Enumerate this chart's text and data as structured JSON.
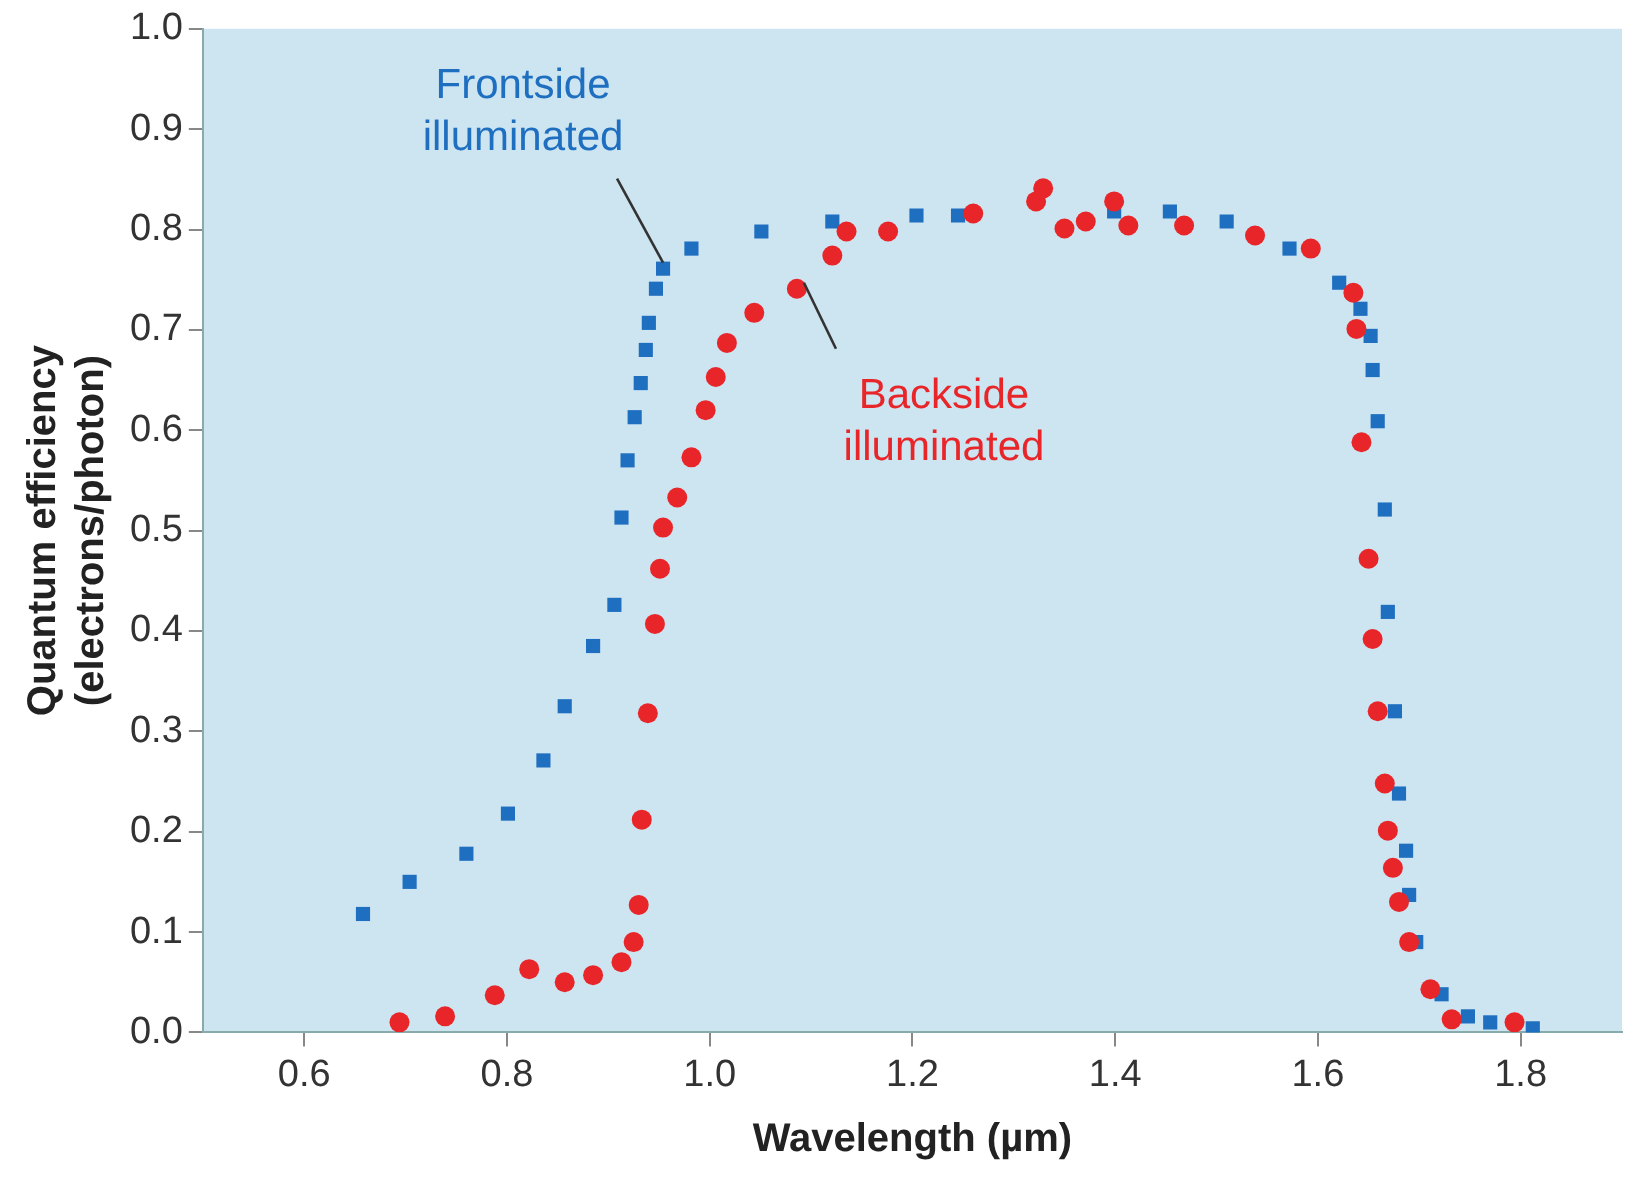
{
  "chart_data": {
    "type": "scatter",
    "xlabel": "Wavelength (µm)",
    "ylabel": "Quantum efficiency\n(electrons/photon)",
    "xlim": [
      0.5,
      1.9
    ],
    "xticks": [
      {
        "value": 0.6,
        "label": "0.6"
      },
      {
        "value": 0.8,
        "label": "0.8"
      },
      {
        "value": 1.0,
        "label": "1.0"
      },
      {
        "value": 1.2,
        "label": "1.2"
      },
      {
        "value": 1.4,
        "label": "1.4"
      },
      {
        "value": 1.6,
        "label": "1.6"
      },
      {
        "value": 1.8,
        "label": "1.8"
      }
    ],
    "ylim": [
      0,
      1
    ],
    "yticks": [
      {
        "value": 0,
        "label": "0.0"
      },
      {
        "value": 0.1,
        "label": "0.1"
      },
      {
        "value": 0.2,
        "label": "0.2"
      },
      {
        "value": 0.3,
        "label": "0.3"
      },
      {
        "value": 0.4,
        "label": "0.4"
      },
      {
        "value": 0.5,
        "label": "0.5"
      },
      {
        "value": 0.6,
        "label": "0.6"
      },
      {
        "value": 0.7,
        "label": "0.7"
      },
      {
        "value": 0.8,
        "label": "0.8"
      },
      {
        "value": 0.9,
        "label": "0.9"
      },
      {
        "value": 1,
        "label": "1.0"
      }
    ],
    "grid": false,
    "legend": false,
    "annotations": [
      {
        "text": "Frontside illuminated",
        "x": 0.954,
        "y": 0.767
      },
      {
        "text": "Backside illuminated",
        "x": 1.093,
        "y": 0.747
      }
    ],
    "series": [
      {
        "color": "#1f6fc0",
        "marker": "square",
        "x": [
          0.658,
          0.704,
          0.76,
          0.801,
          0.836,
          0.857,
          0.885,
          0.906,
          0.913,
          0.919,
          0.926,
          0.932,
          0.937,
          0.94,
          0.947,
          0.954,
          0.982,
          1.051,
          1.121,
          1.204,
          1.245,
          1.399,
          1.454,
          1.51,
          1.572,
          1.621,
          1.642,
          1.652,
          1.654,
          1.659,
          1.666,
          1.669,
          1.676,
          1.68,
          1.687,
          1.69,
          1.697,
          1.722,
          1.748,
          1.77,
          1.812
        ],
        "values": [
          0.118,
          0.15,
          0.178,
          0.218,
          0.271,
          0.325,
          0.385,
          0.426,
          0.513,
          0.57,
          0.613,
          0.647,
          0.68,
          0.707,
          0.741,
          0.761,
          0.781,
          0.798,
          0.808,
          0.814,
          0.814,
          0.818,
          0.818,
          0.808,
          0.781,
          0.747,
          0.721,
          0.694,
          0.66,
          0.609,
          0.521,
          0.419,
          0.32,
          0.238,
          0.181,
          0.137,
          0.09,
          0.038,
          0.016,
          0.01,
          0.004
        ]
      },
      {
        "color": "#e8262a",
        "marker": "circle",
        "x": [
          0.694,
          0.739,
          0.788,
          0.822,
          0.857,
          0.885,
          0.913,
          0.925,
          0.93,
          0.933,
          0.939,
          0.946,
          0.951,
          0.954,
          0.968,
          0.982,
          0.996,
          1.006,
          1.017,
          1.044,
          1.086,
          1.121,
          1.135,
          1.176,
          1.26,
          1.322,
          1.329,
          1.35,
          1.371,
          1.399,
          1.413,
          1.468,
          1.538,
          1.593,
          1.635,
          1.638,
          1.643,
          1.65,
          1.654,
          1.659,
          1.666,
          1.669,
          1.674,
          1.68,
          1.69,
          1.711,
          1.732,
          1.794
        ],
        "values": [
          0.01,
          0.016,
          0.037,
          0.063,
          0.05,
          0.057,
          0.07,
          0.09,
          0.127,
          0.212,
          0.318,
          0.407,
          0.462,
          0.503,
          0.533,
          0.573,
          0.62,
          0.653,
          0.687,
          0.717,
          0.741,
          0.774,
          0.798,
          0.798,
          0.816,
          0.828,
          0.841,
          0.801,
          0.808,
          0.828,
          0.804,
          0.804,
          0.794,
          0.781,
          0.737,
          0.701,
          0.588,
          0.472,
          0.392,
          0.32,
          0.248,
          0.201,
          0.164,
          0.13,
          0.09,
          0.043,
          0.013,
          0.01
        ]
      }
    ]
  }
}
